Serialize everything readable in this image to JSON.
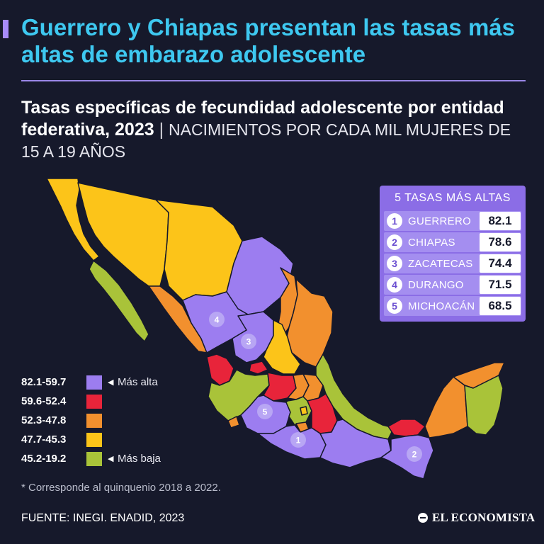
{
  "headline": "Guerrero y Chiapas presentan las tasas más altas de embarazo adolescente",
  "subtitle": {
    "bold": "Tasas específicas de fecundidad adolescente por entidad federativa, 2023",
    "separator": "|",
    "light": "NACIMIENTOS POR CADA MIL MUJERES DE 15 A 19 AÑOS"
  },
  "top5": {
    "title": "5 TASAS MÁS ALTAS",
    "rows": [
      {
        "rank": "1",
        "state": "GUERRERO",
        "value": "82.1"
      },
      {
        "rank": "2",
        "state": "CHIAPAS",
        "value": "78.6"
      },
      {
        "rank": "3",
        "state": "ZACATECAS",
        "value": "74.4"
      },
      {
        "rank": "4",
        "state": "DURANGO",
        "value": "71.5"
      },
      {
        "rank": "5",
        "state": "MICHOACÁN",
        "value": "68.5"
      }
    ]
  },
  "legend": [
    {
      "range": "82.1-59.7",
      "color": "#9c7df0",
      "note": "Más alta"
    },
    {
      "range": "59.6-52.4",
      "color": "#e8243a",
      "note": ""
    },
    {
      "range": "52.3-47.8",
      "color": "#f2902e",
      "note": ""
    },
    {
      "range": "47.7-45.3",
      "color": "#fcc419",
      "note": ""
    },
    {
      "range": "45.2-19.2",
      "color": "#a9c339",
      "note": "Más baja"
    }
  ],
  "map_markers": [
    "4",
    "3",
    "5",
    "1",
    "2"
  ],
  "footnote": "* Corresponde al quinquenio 2018 a 2022.",
  "source": "FUENTE: INEGI. ENADID, 2023",
  "brand": "EL ECONOMISTA",
  "colors": {
    "background": "#16192b",
    "headline": "#3ec8f0",
    "purple": "#9c7df0",
    "red": "#e8243a",
    "orange": "#f2902e",
    "yellow": "#fcc419",
    "green": "#a9c339"
  }
}
